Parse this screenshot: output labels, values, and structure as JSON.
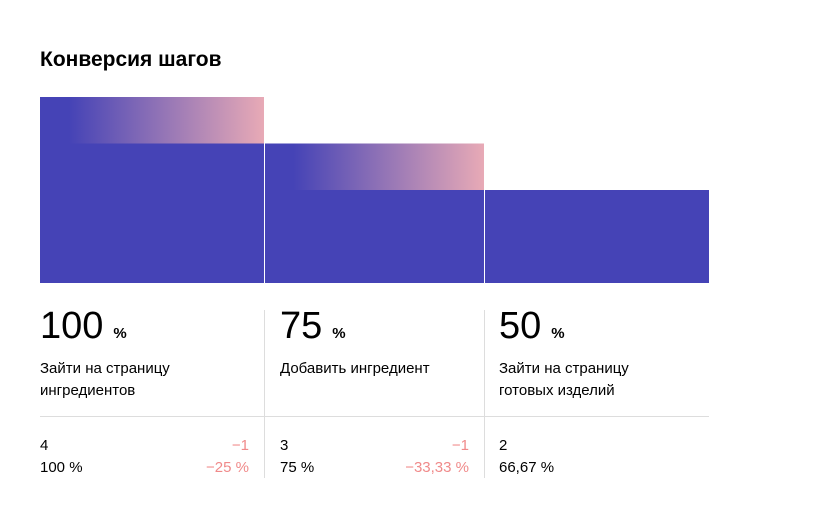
{
  "title": "Конверсия шагов",
  "colors": {
    "bar": "#4543b6",
    "gradient_end": "#e8aab6",
    "drop_text": "#f08a8a",
    "separator": "#dddddd"
  },
  "chart_data": {
    "type": "bar",
    "title": "Конверсия шагов",
    "categories": [
      "Зайти на страницу ингредиентов",
      "Добавить ингредиент",
      "Зайти на страницу готовых изделий"
    ],
    "values": [
      4,
      3,
      2
    ],
    "conversion_percent": [
      100,
      75,
      50
    ],
    "dropoff_values": [
      1,
      1,
      null
    ],
    "ylim": [
      0,
      4
    ],
    "grid": false
  },
  "steps": [
    {
      "percent": "100",
      "unit": "%",
      "label": "Зайти на страницу ингредиентов",
      "count": "4",
      "share": "100 %",
      "drop_count": "−1",
      "drop_pct": "−25 %"
    },
    {
      "percent": "75",
      "unit": "%",
      "label": "Добавить ингредиент",
      "count": "3",
      "share": "75 %",
      "drop_count": "−1",
      "drop_pct": "−33,33 %"
    },
    {
      "percent": "50",
      "unit": "%",
      "label": "Зайти на страницу готовых изделий",
      "count": "2",
      "share": "66,67 %"
    }
  ]
}
